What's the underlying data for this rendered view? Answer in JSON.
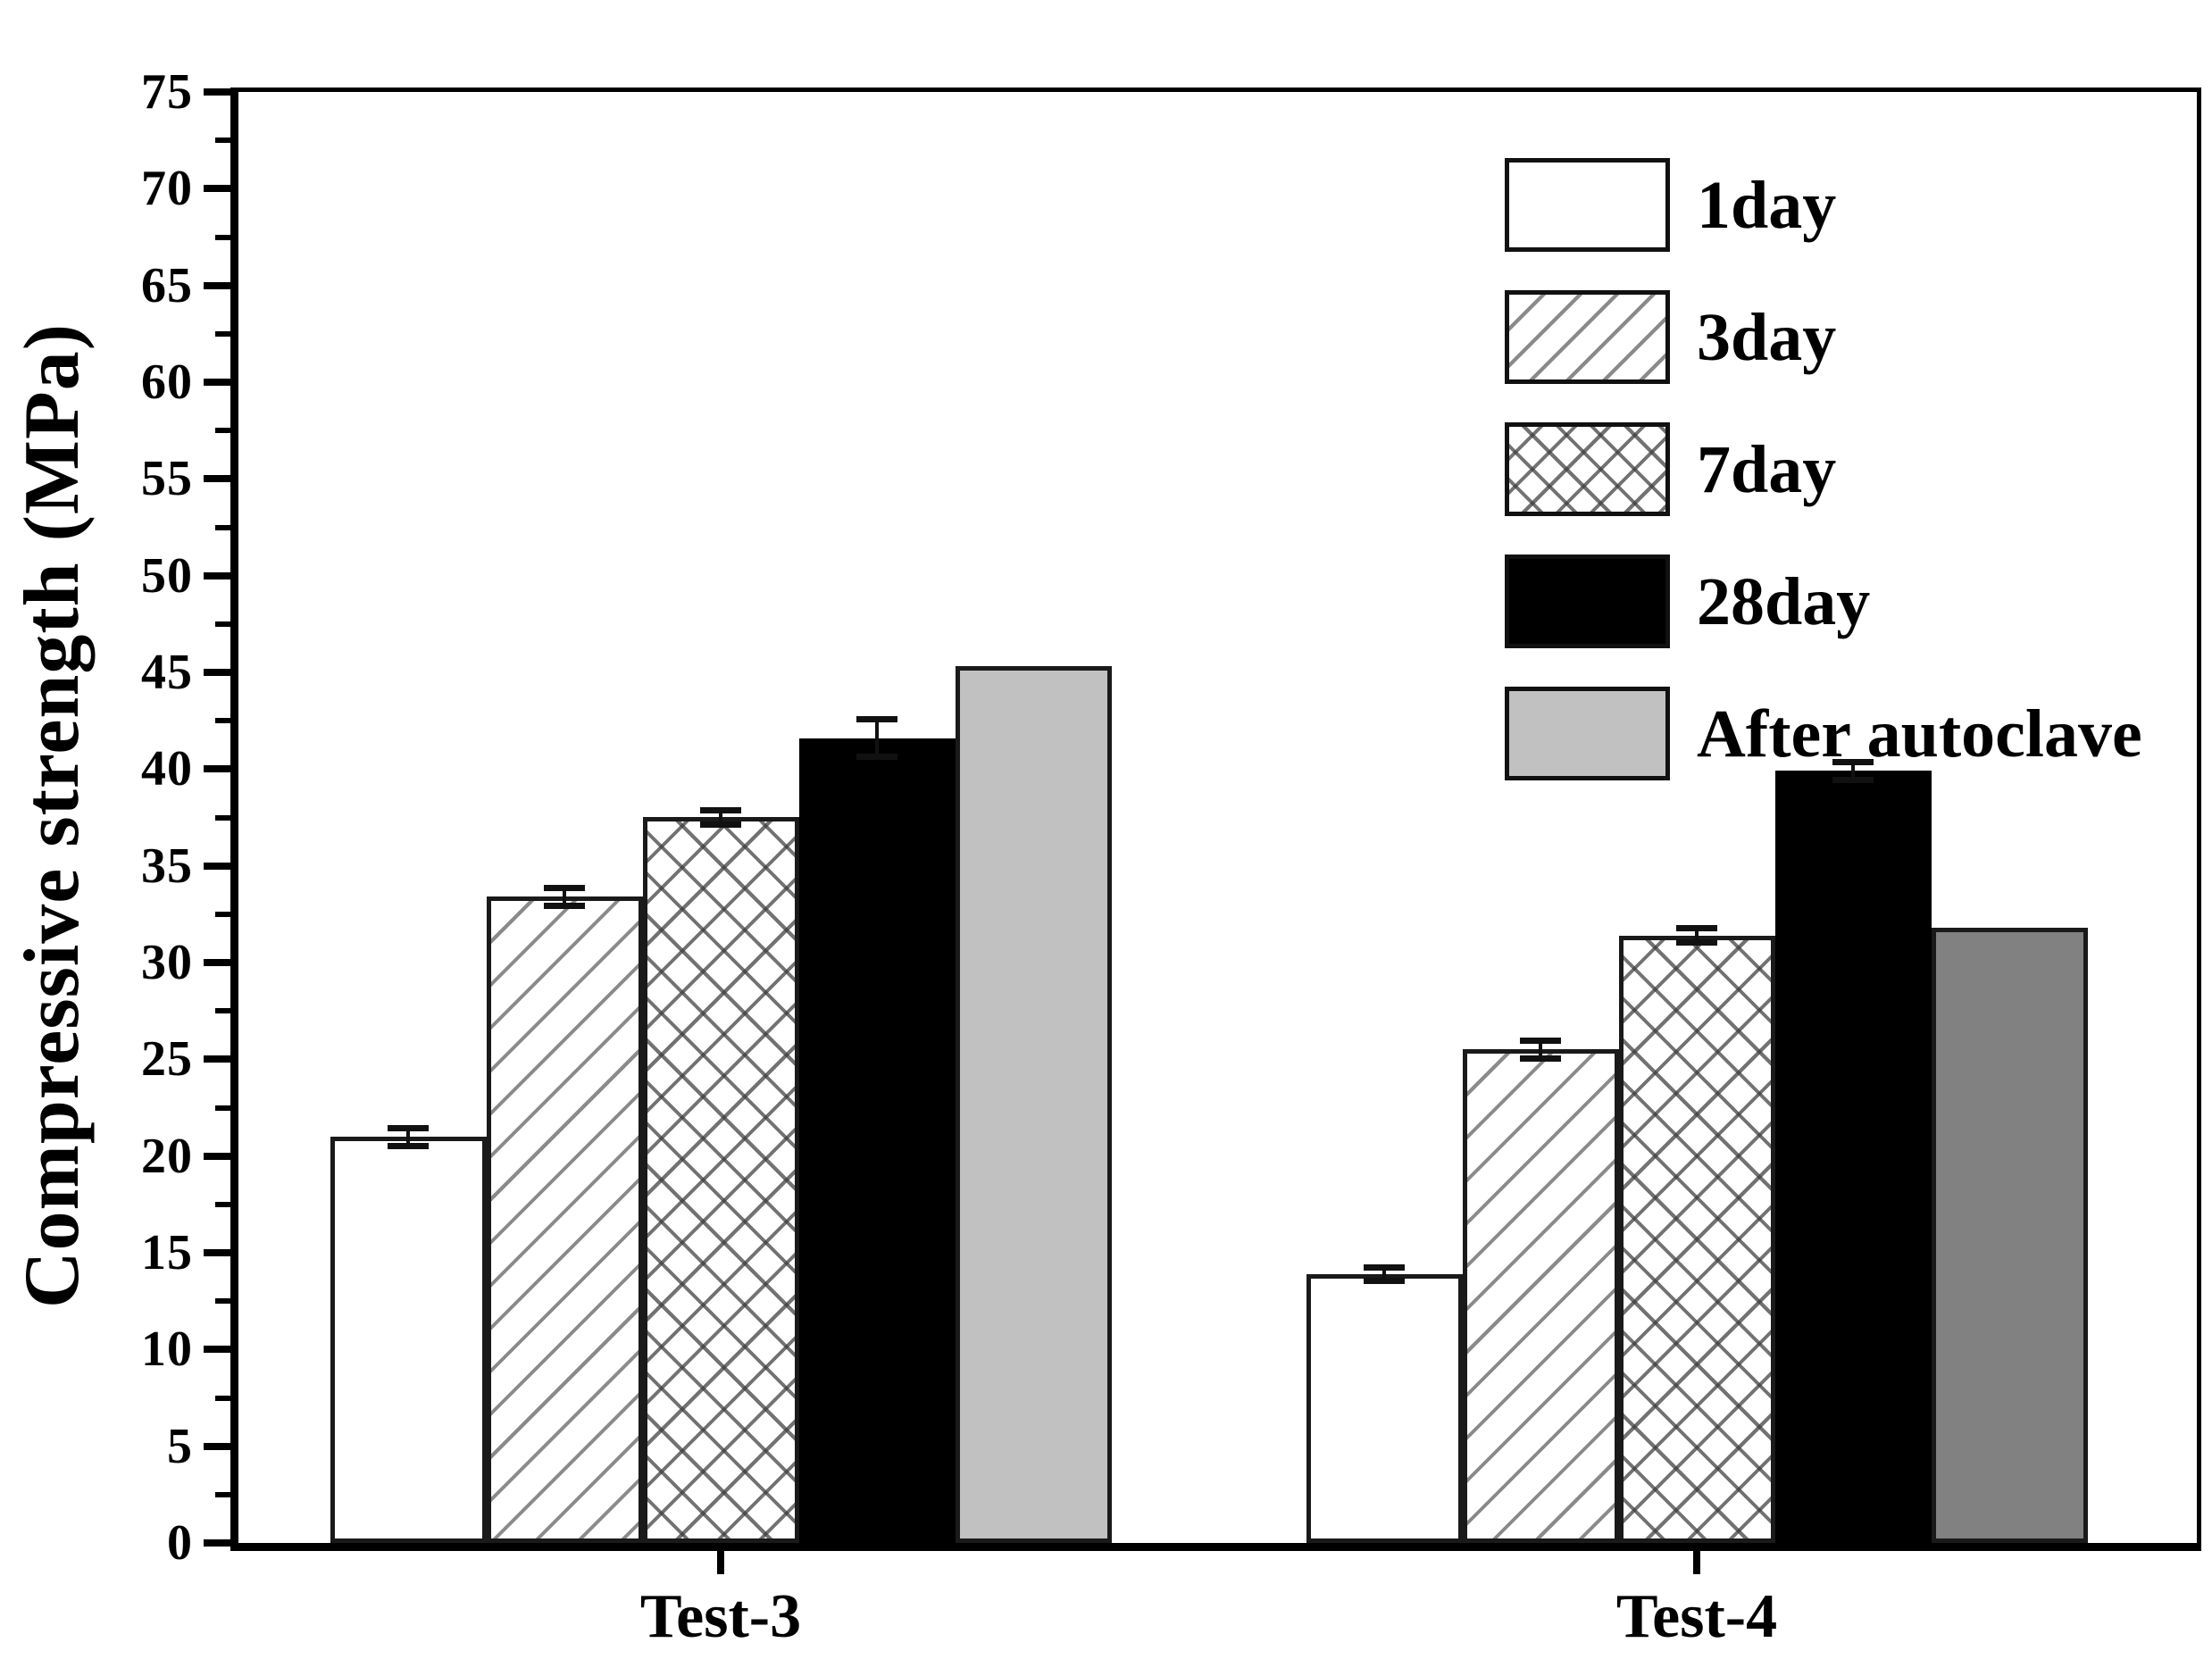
{
  "chart_data": {
    "type": "bar",
    "title": "",
    "xlabel": "",
    "ylabel": "Compressive strength (MPa)",
    "ylim": [
      0,
      75
    ],
    "y_tick_step": 5,
    "y_minor_tick_step": 2.5,
    "grid": false,
    "legend_position": "top-right-inside",
    "categories": [
      "Test-3",
      "Test-4"
    ],
    "series": [
      {
        "name": "1day",
        "pattern": "plain",
        "fills": [
          "#ffffff",
          "#ffffff"
        ],
        "values": [
          21.0,
          13.9
        ],
        "errors": [
          0.3,
          0.2
        ]
      },
      {
        "name": "3day",
        "pattern": "diag",
        "fills": [
          "#ffffff",
          "#ffffff"
        ],
        "values": [
          33.4,
          25.5
        ],
        "errors": [
          0.3,
          0.3
        ]
      },
      {
        "name": "7day",
        "pattern": "cross",
        "fills": [
          "#ffffff",
          "#ffffff"
        ],
        "values": [
          37.5,
          31.4
        ],
        "errors": [
          0.2,
          0.2
        ]
      },
      {
        "name": "28day",
        "pattern": "solid",
        "fills": [
          "#000000",
          "#000000"
        ],
        "values": [
          41.6,
          39.9
        ],
        "errors": [
          0.8,
          0.3
        ]
      },
      {
        "name": "After autoclave",
        "pattern": "solid",
        "fills": [
          "#c1c1c1",
          "#818181"
        ],
        "values": [
          45.3,
          31.8
        ],
        "errors": [
          null,
          null
        ]
      }
    ],
    "axis_color": "#000000",
    "hatch_color": "#8a8a8a"
  }
}
